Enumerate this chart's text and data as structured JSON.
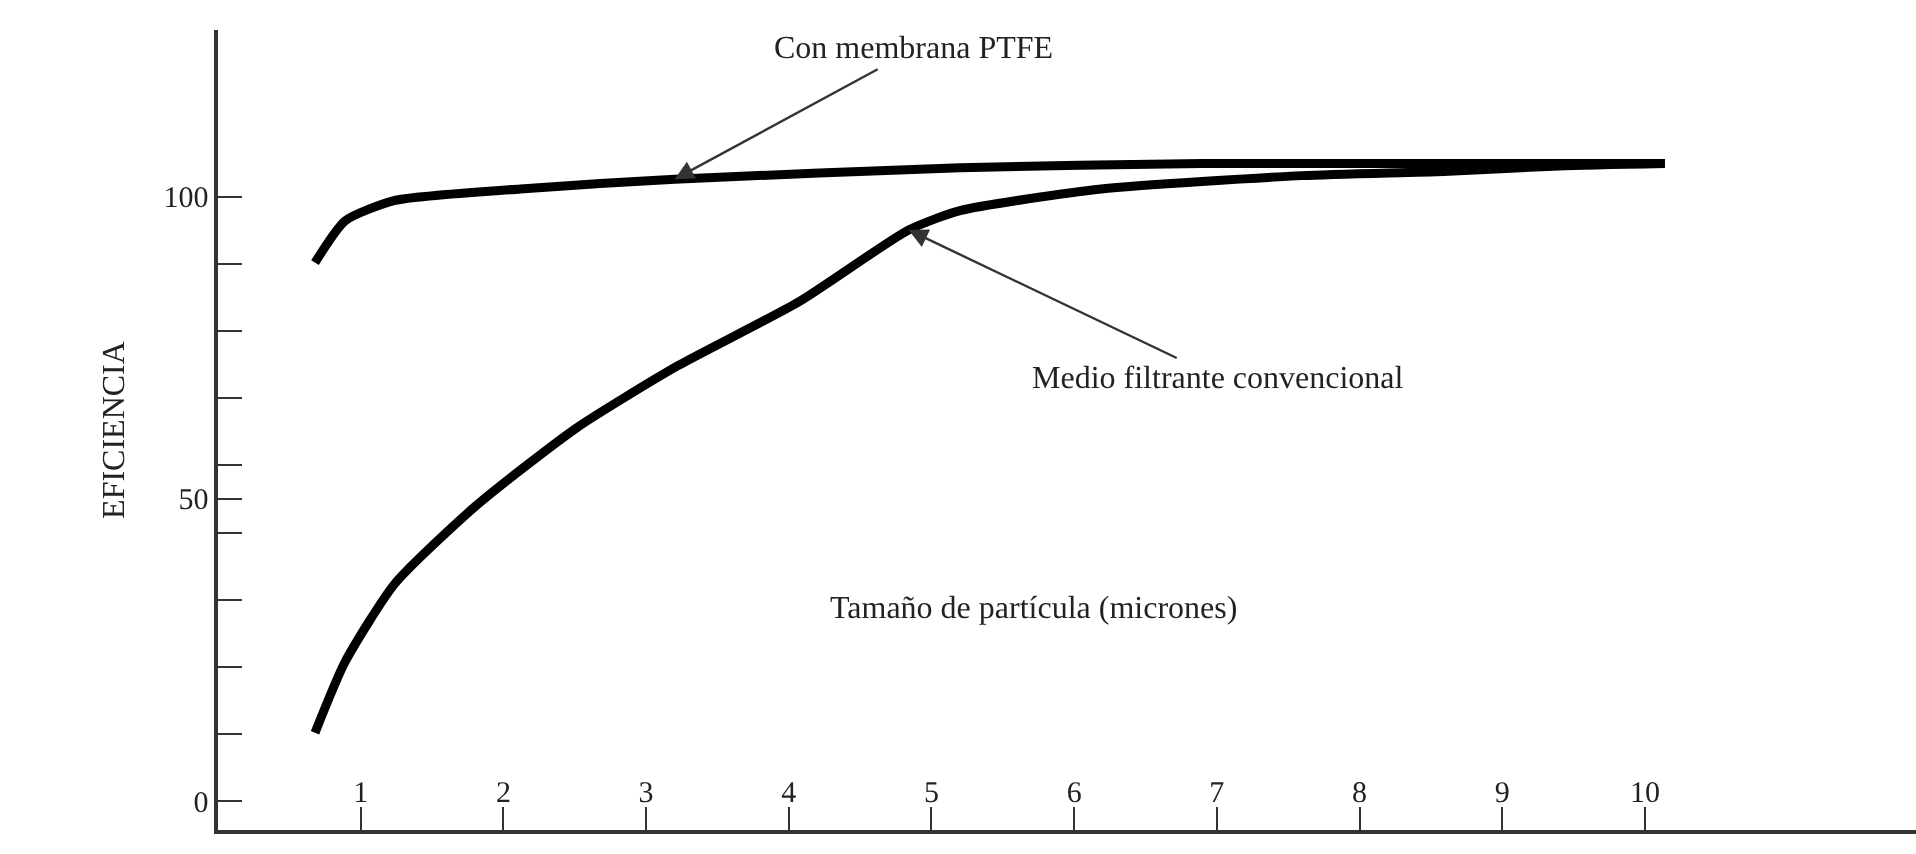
{
  "chart_data": {
    "type": "line",
    "xlabel": "Tamaño de partícula (micrones)",
    "ylabel": "EFICIENCIA",
    "xlim": [
      0,
      11.9
    ],
    "ylim": [
      -4.8,
      127.6
    ],
    "xticks": [
      1,
      2,
      3,
      4,
      5,
      6,
      7,
      8,
      9,
      10
    ],
    "yticks": [
      0,
      {
        "value": 11.1,
        "label": null
      },
      {
        "value": 22.2,
        "label": null
      },
      {
        "value": 33.3,
        "label": null
      },
      {
        "value": 44.4,
        "label": null
      },
      50,
      {
        "value": 55.6,
        "label": null
      },
      {
        "value": 66.7,
        "label": null
      },
      {
        "value": 77.8,
        "label": null
      },
      {
        "value": 88.9,
        "label": null
      },
      100
    ],
    "marker": "none",
    "line_style": "solid",
    "series": [
      {
        "color": "#000000",
        "x": [
          0.68,
          0.89,
          1.24,
          2.12,
          3.2,
          5.2,
          6.9,
          8.3,
          10.14
        ],
        "values": [
          89.1,
          96,
          99.4,
          101.3,
          102.9,
          104.8,
          105.5,
          105.5,
          105.5
        ]
      },
      {
        "color": "#000000",
        "x": [
          0.68,
          0.89,
          1.24,
          1.81,
          2.51,
          3.22,
          4.07,
          4.84,
          5.2,
          6.19,
          7.6,
          8.59,
          9.4,
          10.14
        ],
        "values": [
          11.3,
          23,
          36,
          48.9,
          61.7,
          72,
          82.6,
          94.5,
          97.7,
          101.3,
          103.5,
          104.2,
          105.1,
          105.5
        ]
      }
    ],
    "annotations": [
      {
        "text": "Con membrana PTFE",
        "x": 3.2,
        "y": 102.9
      },
      {
        "text": "Medio filtrante convencional",
        "x": 4.84,
        "y": 94.5
      }
    ]
  }
}
